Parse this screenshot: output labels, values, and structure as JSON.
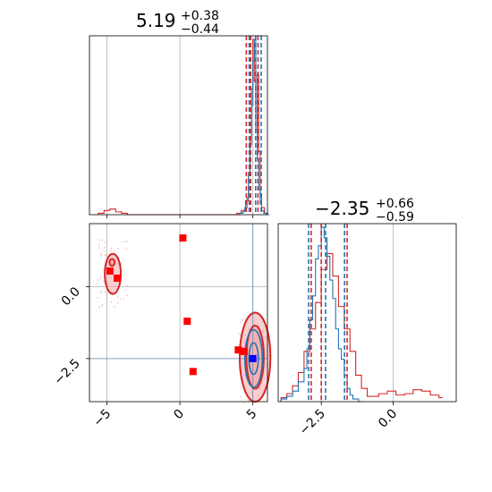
{
  "chart_data": {
    "type": "corner",
    "colors": {
      "series_a": "#1f77b4",
      "series_b": "#d62728",
      "marker": "#ff0000",
      "truth": "#0000ff",
      "contour_fill_b": "#f4a6a6",
      "grid": "#b0b0b0"
    },
    "params": [
      {
        "title": {
          "median": "5.19",
          "plus": "+0.38",
          "minus": "−0.44"
        },
        "range": [
          -6.2,
          6.0
        ],
        "ticks": [
          -5,
          0,
          5
        ],
        "tick_labels": [
          "−5",
          "0",
          "5"
        ],
        "quantiles_series_a": [
          4.75,
          5.19,
          5.57
        ],
        "quantiles_series_b": [
          4.55,
          4.85,
          5.35
        ],
        "hist_series_a": {
          "x": [
            3.9,
            4.1,
            4.3,
            4.45,
            4.6,
            4.7,
            4.8,
            4.9,
            5.0,
            5.1,
            5.2,
            5.3,
            5.4,
            5.5,
            5.6,
            5.75,
            5.9
          ],
          "counts": [
            0,
            1,
            2,
            5,
            12,
            28,
            50,
            78,
            110,
            125,
            80,
            40,
            18,
            8,
            3,
            1,
            0
          ]
        },
        "hist_series_b": {
          "x": [
            -5.6,
            -5.2,
            -4.8,
            -4.4,
            -4.0,
            -3.6,
            3.9,
            4.2,
            4.5,
            4.7,
            4.8,
            4.9,
            5.0,
            5.1,
            5.2,
            5.3,
            5.4,
            5.5,
            5.6,
            5.8
          ],
          "counts": [
            1,
            3,
            4,
            2,
            1,
            0,
            1,
            3,
            10,
            30,
            55,
            90,
            125,
            95,
            60,
            100,
            45,
            15,
            5,
            1
          ]
        }
      },
      {
        "title": {
          "median": "−2.35",
          "plus": "+0.66",
          "minus": "−0.59"
        },
        "range": [
          -4.0,
          2.2
        ],
        "ticks": [
          -2.5,
          0.0
        ],
        "tick_labels": [
          "−2.5",
          "0.0"
        ],
        "quantiles_series_a": [
          -2.94,
          -2.35,
          -1.69
        ],
        "quantiles_series_b": [
          -2.85,
          -2.5,
          -1.6
        ],
        "hist_series_a": {
          "x": [
            -3.9,
            -3.7,
            -3.5,
            -3.3,
            -3.1,
            -3.0,
            -2.9,
            -2.8,
            -2.7,
            -2.6,
            -2.5,
            -2.4,
            -2.3,
            -2.2,
            -2.1,
            -2.0,
            -1.9,
            -1.8,
            -1.7,
            -1.6,
            -1.5,
            -1.4,
            -1.2
          ],
          "counts": [
            2,
            4,
            8,
            15,
            25,
            40,
            62,
            80,
            108,
            118,
            132,
            124,
            110,
            92,
            78,
            55,
            40,
            32,
            20,
            10,
            5,
            2,
            0
          ]
        },
        "hist_series_b": {
          "x": [
            -3.9,
            -3.7,
            -3.5,
            -3.3,
            -3.1,
            -2.9,
            -2.7,
            -2.5,
            -2.3,
            -2.1,
            -1.9,
            -1.7,
            -1.5,
            -1.3,
            -1.1,
            -0.9,
            -0.5,
            -0.2,
            0.1,
            0.4,
            0.7,
            1.0,
            1.3,
            1.6
          ],
          "counts": [
            3,
            6,
            12,
            22,
            38,
            55,
            75,
            100,
            112,
            95,
            72,
            55,
            38,
            20,
            10,
            4,
            6,
            8,
            5,
            6,
            9,
            8,
            5,
            3
          ]
        }
      }
    ],
    "joint": {
      "markers": [
        {
          "x": 0.2,
          "y": 1.7
        },
        {
          "x": -4.8,
          "y": 0.55
        },
        {
          "x": -4.3,
          "y": 0.3
        },
        {
          "x": 0.5,
          "y": -1.2
        },
        {
          "x": 0.9,
          "y": -2.95
        },
        {
          "x": 4.0,
          "y": -2.2
        },
        {
          "x": 4.4,
          "y": -2.25
        }
      ],
      "truth": {
        "x": 5.0,
        "y": -2.5
      },
      "contours_series_b": [
        {
          "cx": 5.15,
          "cy": -2.45,
          "rx": 1.05,
          "ry": 1.55,
          "fill_opacity": 0.55
        },
        {
          "cx": 5.15,
          "cy": -2.45,
          "rx": 0.6,
          "ry": 1.1,
          "fill_opacity": 0.75
        },
        {
          "cx": -4.6,
          "cy": 0.45,
          "rx": 0.55,
          "ry": 0.7,
          "fill_opacity": 0.55
        },
        {
          "cx": -4.65,
          "cy": 0.85,
          "rx": 0.18,
          "ry": 0.12,
          "fill_opacity": 0.9
        }
      ],
      "contours_series_a": [
        {
          "cx": 5.05,
          "cy": -2.5,
          "rx": 0.6,
          "ry": 1.0
        },
        {
          "cx": 5.05,
          "cy": -2.5,
          "rx": 0.32,
          "ry": 0.55
        }
      ]
    }
  }
}
